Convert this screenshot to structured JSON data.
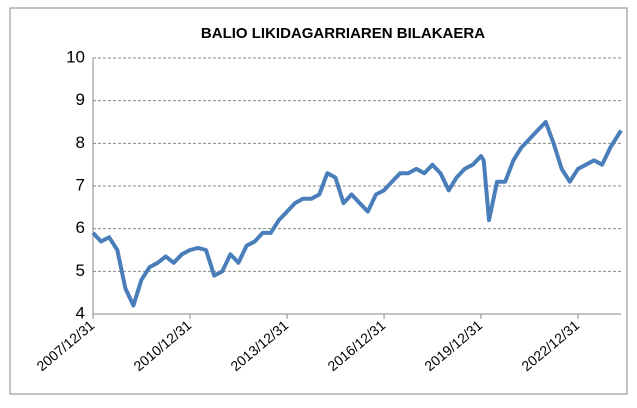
{
  "chart_data": {
    "type": "line",
    "title": "BALIO LIKIDAGARRIAREN BILAKAERA",
    "x": [
      "2007/12/31",
      "2008/03/31",
      "2008/06/30",
      "2008/09/30",
      "2008/12/31",
      "2009/03/31",
      "2009/06/30",
      "2009/09/30",
      "2009/12/31",
      "2010/03/31",
      "2010/06/30",
      "2010/09/30",
      "2010/12/31",
      "2011/03/31",
      "2011/06/30",
      "2011/09/30",
      "2011/12/31",
      "2012/03/31",
      "2012/06/30",
      "2012/09/30",
      "2012/12/31",
      "2013/03/31",
      "2013/06/30",
      "2013/09/30",
      "2013/12/31",
      "2014/03/31",
      "2014/06/30",
      "2014/09/30",
      "2014/12/31",
      "2015/03/31",
      "2015/06/30",
      "2015/09/30",
      "2015/12/31",
      "2016/03/31",
      "2016/06/30",
      "2016/09/30",
      "2016/12/31",
      "2017/03/31",
      "2017/06/30",
      "2017/09/30",
      "2017/12/31",
      "2018/03/31",
      "2018/06/30",
      "2018/09/30",
      "2018/12/31",
      "2019/03/31",
      "2019/06/30",
      "2019/09/30",
      "2019/12/31",
      "2020/01/31",
      "2020/03/31",
      "2020/06/30",
      "2020/09/30",
      "2020/12/31",
      "2021/03/31",
      "2021/06/30",
      "2021/09/30",
      "2021/12/31",
      "2022/03/31",
      "2022/06/30",
      "2022/09/30",
      "2022/12/31",
      "2023/03/31",
      "2023/06/30",
      "2023/09/30",
      "2023/12/31",
      "2024/03/31",
      "2024/04/30"
    ],
    "series": [
      {
        "color": "#4a7ebb",
        "values": [
          5.9,
          5.7,
          5.8,
          5.5,
          4.6,
          4.2,
          4.8,
          5.1,
          5.2,
          5.35,
          5.2,
          5.4,
          5.5,
          5.55,
          5.5,
          4.9,
          5.0,
          5.4,
          5.2,
          5.6,
          5.7,
          5.9,
          5.9,
          6.2,
          6.4,
          6.6,
          6.7,
          6.7,
          6.8,
          7.3,
          7.2,
          6.6,
          6.8,
          6.6,
          6.4,
          6.8,
          6.9,
          7.1,
          7.3,
          7.3,
          7.4,
          7.3,
          7.5,
          7.3,
          6.9,
          7.2,
          7.4,
          7.5,
          7.7,
          7.6,
          6.2,
          7.1,
          7.1,
          7.6,
          7.9,
          8.1,
          8.3,
          8.5,
          8.0,
          7.4,
          7.1,
          7.4,
          7.5,
          7.6,
          7.5,
          7.9,
          8.2,
          8.3
        ]
      }
    ],
    "xlim": [
      "2007/12/31",
      "2024/04/30"
    ],
    "xticks": [
      "2007/12/31",
      "2010/12/31",
      "2013/12/31",
      "2016/12/31",
      "2019/12/31",
      "2022/12/31"
    ],
    "ylim": [
      4,
      10
    ],
    "yticks": [
      4,
      5,
      6,
      7,
      8,
      9,
      10
    ],
    "grid": true
  }
}
